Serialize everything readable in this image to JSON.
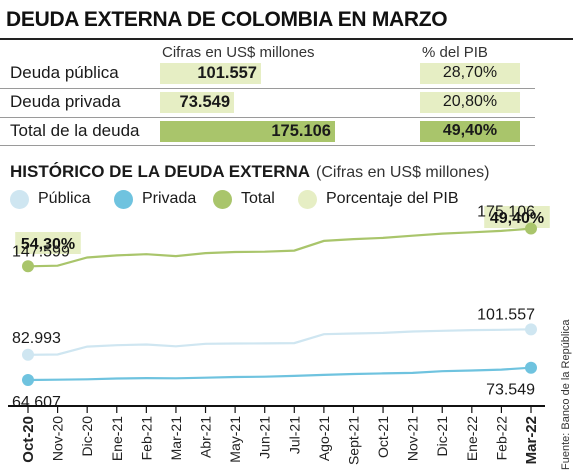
{
  "summary": {
    "title": "DEUDA EXTERNA DE COLOMBIA EN MARZO",
    "col_cifras": "Cifras en US$ millones",
    "col_pib": "% del PIB",
    "rows": [
      {
        "label": "Deuda pública",
        "value": "101.557",
        "amount": 101557,
        "pib": "28,70%"
      },
      {
        "label": "Deuda privada",
        "value": "73.549",
        "amount": 73549,
        "pib": "20,80%"
      },
      {
        "label": "Total de la deuda",
        "value": "175.106",
        "amount": 175106,
        "pib": "49,40%"
      }
    ]
  },
  "historico": {
    "title": "HISTÓRICO DE LA DEUDA EXTERNA",
    "subtitle": "(Cifras en US$ millones)"
  },
  "source": "Fuente: Banco de la República",
  "colors": {
    "publica": "#cfe6f1",
    "privada": "#6fc3df",
    "total": "#a9c56b",
    "pib": "#e6eec4",
    "axis": "#111111"
  },
  "chart_data": {
    "type": "line",
    "categories": [
      "Oct-20",
      "Nov-20",
      "Dic-20",
      "Ene-21",
      "Feb-21",
      "Mar-21",
      "Abr-21",
      "May-21",
      "Jun-21",
      "Jul-21",
      "Ago-21",
      "Sept-21",
      "Oct-21",
      "Nov-21",
      "Dic-21",
      "Ene-22",
      "Feb-22",
      "Mar-22"
    ],
    "series": [
      {
        "name": "Pública",
        "key": "publica",
        "values": [
          82993,
          83200,
          89000,
          90000,
          90500,
          89200,
          91000,
          91200,
          91300,
          91500,
          98000,
          98500,
          99000,
          100000,
          100500,
          101000,
          101200,
          101557
        ]
      },
      {
        "name": "Privada",
        "key": "privada",
        "values": [
          64607,
          64800,
          65100,
          65700,
          66000,
          65800,
          66300,
          66800,
          67000,
          67600,
          68300,
          69000,
          69400,
          69800,
          71000,
          71500,
          72200,
          73549
        ]
      },
      {
        "name": "Total",
        "key": "total",
        "values": [
          147599,
          148000,
          154000,
          155500,
          156400,
          155000,
          157200,
          158000,
          158200,
          159000,
          166100,
          167400,
          168300,
          169900,
          171400,
          172400,
          173400,
          175106
        ]
      }
    ],
    "legend": [
      "Pública",
      "Privada",
      "Total",
      "Porcentaje del PIB"
    ],
    "point_labels": {
      "first": {
        "Total": "147.599",
        "Pública": "82.993",
        "Privada": "64.607"
      },
      "last": {
        "Total": "175.106",
        "Pública": "101.557",
        "Privada": "73.549"
      }
    },
    "pib_labels": {
      "first": "54,30%",
      "last": "49,40%"
    },
    "ylim": [
      50000,
      185000
    ]
  }
}
